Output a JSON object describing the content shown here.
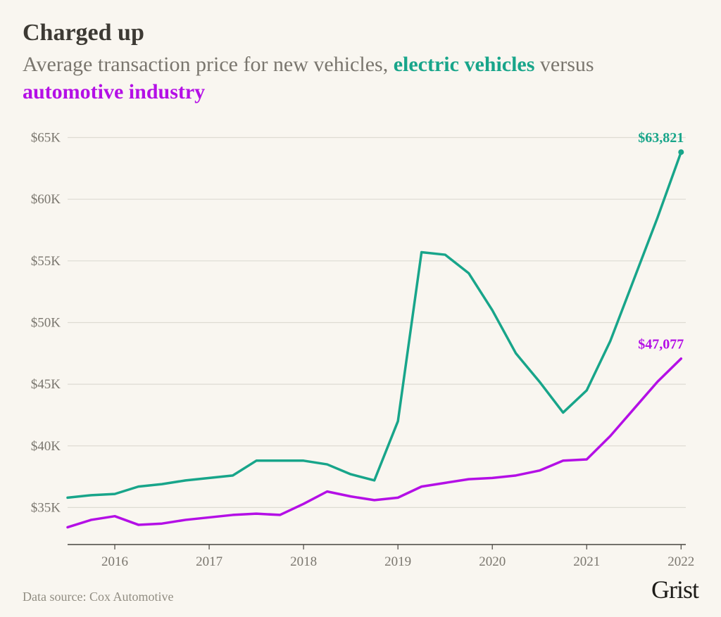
{
  "colors": {
    "background": "#f9f6f0",
    "title": "#3d3a34",
    "subtitle": "#7a766e",
    "ev": "#18a58a",
    "industry": "#b40fe6",
    "gridline": "#dedbd3",
    "axis_text": "#7a766e",
    "axis_line": "#494640",
    "source": "#918d82",
    "brand": "#1e1c18"
  },
  "title": "Charged up",
  "subtitle_parts": {
    "p1": "Average transaction price for new vehicles, ",
    "ev": "electric vehicles",
    "p2": " versus ",
    "ind": "automotive industry"
  },
  "source": "Data source: Cox Automotive",
  "brand": "Grist",
  "chart": {
    "type": "line",
    "y": {
      "min": 32000,
      "max": 66000,
      "ticks": [
        35000,
        40000,
        45000,
        50000,
        55000,
        60000,
        65000
      ],
      "tick_labels": [
        "$35K",
        "$40K",
        "$45K",
        "$50K",
        "$55K",
        "$60K",
        "$65K"
      ]
    },
    "x": {
      "min": 2015.5,
      "max": 2022.05,
      "ticks": [
        2016,
        2017,
        2018,
        2019,
        2020,
        2021,
        2022
      ],
      "tick_labels": [
        "2016",
        "2017",
        "2018",
        "2019",
        "2020",
        "2021",
        "2022"
      ]
    },
    "line_width": 3.5,
    "label_fontsize": 20,
    "tick_fontsize": 19,
    "series": {
      "ev": {
        "x": [
          2015.5,
          2015.75,
          2016.0,
          2016.25,
          2016.5,
          2016.75,
          2017.0,
          2017.25,
          2017.5,
          2017.75,
          2018.0,
          2018.25,
          2018.5,
          2018.75,
          2019.0,
          2019.25,
          2019.5,
          2019.75,
          2020.0,
          2020.25,
          2020.5,
          2020.75,
          2021.0,
          2021.25,
          2021.5,
          2021.75,
          2022.0
        ],
        "y": [
          35800,
          36000,
          36100,
          36700,
          36900,
          37200,
          37400,
          37600,
          38800,
          38800,
          38800,
          38500,
          37700,
          37200,
          42000,
          55700,
          55500,
          54000,
          51000,
          47500,
          45200,
          42700,
          44500,
          48500,
          53500,
          58500,
          63821
        ],
        "end_label": "$63,821",
        "end_marker": true
      },
      "industry": {
        "x": [
          2015.5,
          2015.75,
          2016.0,
          2016.25,
          2016.5,
          2016.75,
          2017.0,
          2017.25,
          2017.5,
          2017.75,
          2018.0,
          2018.25,
          2018.5,
          2018.75,
          2019.0,
          2019.25,
          2019.5,
          2019.75,
          2020.0,
          2020.25,
          2020.5,
          2020.75,
          2021.0,
          2021.25,
          2021.5,
          2021.75,
          2022.0
        ],
        "y": [
          33400,
          34000,
          34300,
          33600,
          33700,
          34000,
          34200,
          34400,
          34500,
          34400,
          35300,
          36300,
          35900,
          35600,
          35800,
          36700,
          37000,
          37300,
          37400,
          37600,
          38000,
          38800,
          38900,
          40800,
          43000,
          45200,
          47077
        ],
        "end_label": "$47,077",
        "end_marker": false
      }
    }
  }
}
